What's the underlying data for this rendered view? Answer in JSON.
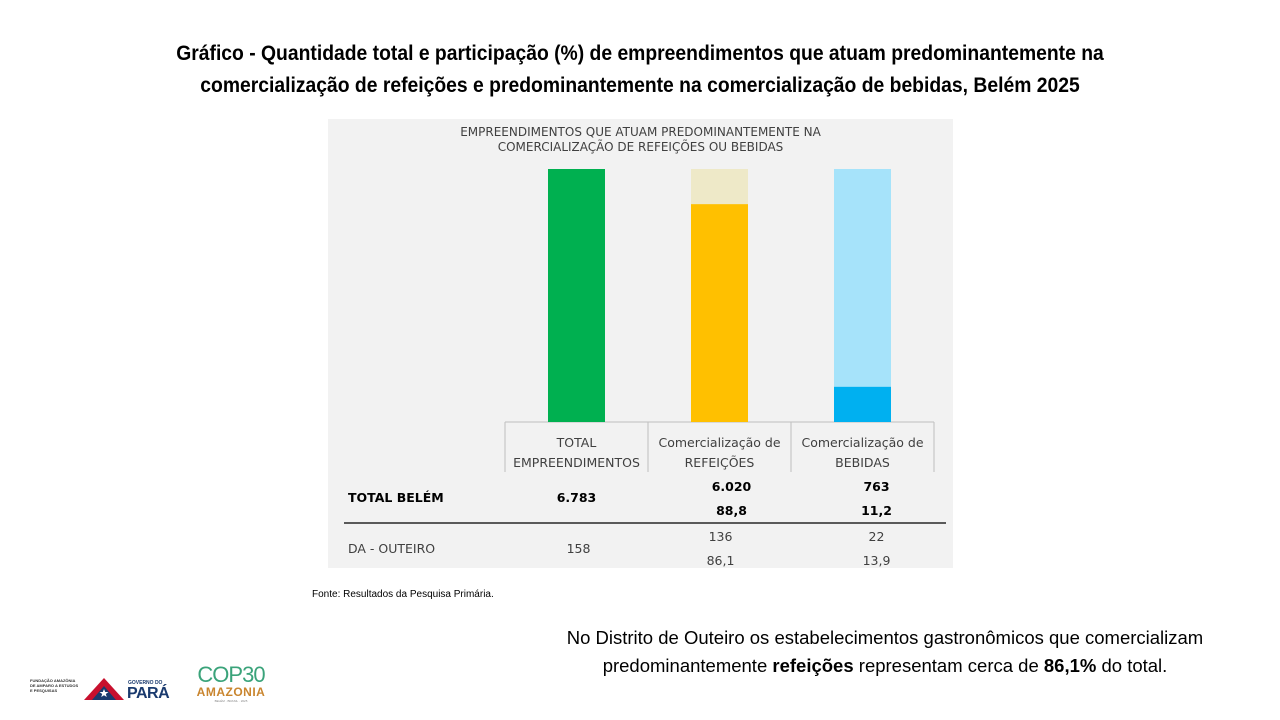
{
  "slide": {
    "title_line1": "Gráfico - Quantidade total e participação (%) de empreendimentos que atuam predominantemente na",
    "title_line2": "comercialização de refeições e predominantemente na comercialização de bebidas, Belém 2025",
    "source": "Fonte: Resultados da Pesquisa Primária.",
    "note_part1": "No Distrito de Outeiro os estabelecimentos gastronômicos que comercializam predominantemente ",
    "note_bold1": "refeições",
    "note_part2": " representam cerca de ",
    "note_bold2": "86,1%",
    "note_part3": " do total."
  },
  "logos": {
    "fapespa": "FUNDAÇÃO AMAZÔNIA DE AMPARO A ESTUDOS E PESQUISAS",
    "governo": "GOVERNO DO",
    "para": "PARÁ",
    "cop": "COP30",
    "amazonia": "AMAZONIA",
    "cop_sub": "BELÉM · BRASIL · 2025"
  },
  "chart_data": {
    "type": "bar",
    "title_line1": "EMPREENDIMENTOS QUE ATUAM PREDOMINANTEMENTE NA",
    "title_line2": "COMERCIALIZAÇÃO DE REFEIÇÕES OU BEBIDAS",
    "categories": [
      [
        "TOTAL",
        "EMPREENDIMENTOS"
      ],
      [
        "Comercialização de",
        "REFEIÇÕES"
      ],
      [
        "Comercialização de",
        "BEBIDAS"
      ]
    ],
    "stacked_percent": [
      {
        "share": 100,
        "color": "#00b050",
        "bg": "#00b050"
      },
      {
        "share": 86.1,
        "color": "#ffc000",
        "bg": "#eee9c8"
      },
      {
        "share": 13.9,
        "color": "#00b0f0",
        "bg": "#a6e3fa"
      }
    ],
    "ylim": [
      0,
      100
    ],
    "table": {
      "rows": [
        {
          "label": "TOTAL BELÉM",
          "bold": true,
          "total": "6.783",
          "refeicoes": [
            "6.020",
            "88,8"
          ],
          "bebidas": [
            "763",
            "11,2"
          ]
        },
        {
          "label": "DA - OUTEIRO",
          "bold": false,
          "total": "158",
          "refeicoes": [
            "136",
            "86,1"
          ],
          "bebidas": [
            "22",
            "13,9"
          ]
        }
      ]
    },
    "colors": {
      "axis": "#bfbfbf",
      "text": "#404040",
      "rule": "#000000"
    }
  }
}
